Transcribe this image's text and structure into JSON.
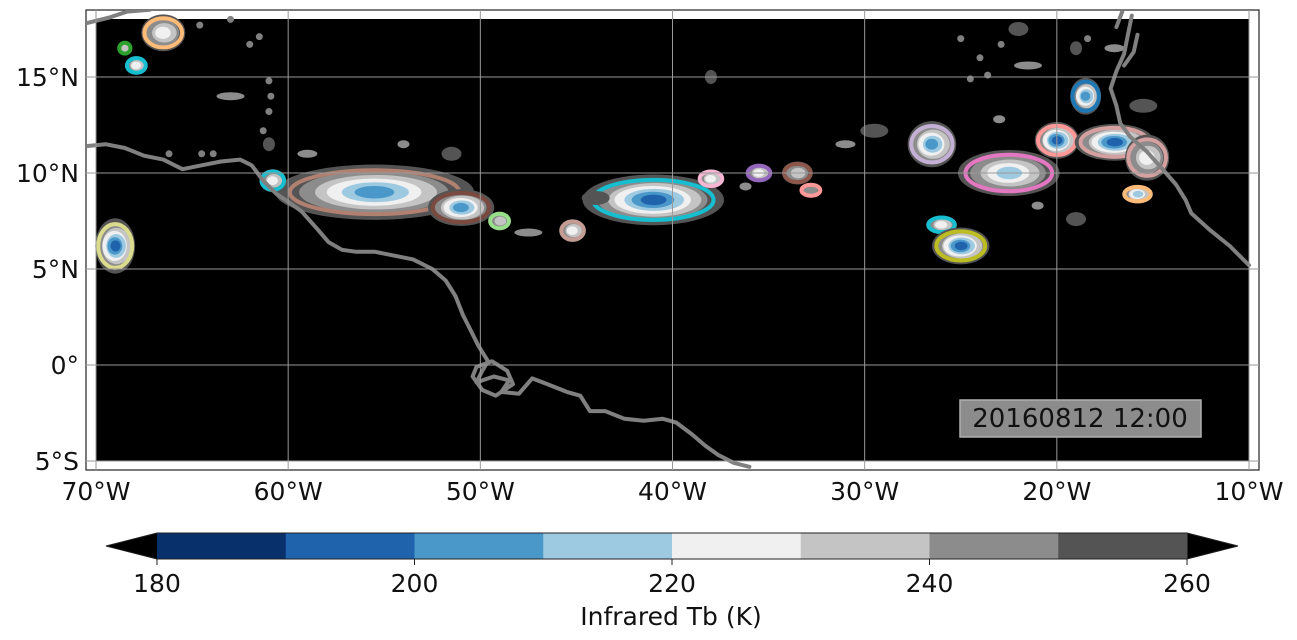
{
  "map": {
    "extent": {
      "lon_min": -70.5,
      "lon_max": -10.0,
      "lat_min": -5.5,
      "lat_max": 18.5
    },
    "gridlines": true,
    "lon_ticks": [
      {
        "value": -70,
        "label": "70°W"
      },
      {
        "value": -60,
        "label": "60°W"
      },
      {
        "value": -50,
        "label": "50°W"
      },
      {
        "value": -40,
        "label": "40°W"
      },
      {
        "value": -30,
        "label": "30°W"
      },
      {
        "value": -20,
        "label": "20°W"
      },
      {
        "value": -10,
        "label": "10°W"
      }
    ],
    "lat_ticks": [
      {
        "value": 15,
        "label": "15°N"
      },
      {
        "value": 10,
        "label": "10°N"
      },
      {
        "value": 5,
        "label": "5°N"
      },
      {
        "value": 0,
        "label": "0°"
      },
      {
        "value": -5,
        "label": "5°S"
      }
    ],
    "timestamp": "20160812 12:00",
    "colors": {
      "ocean": "#000000",
      "coast": "#808080",
      "grid": "#9a9a9a",
      "stamp_bg": "#8c8c8c"
    }
  },
  "colorbar": {
    "label": "Infrared Tb (K)",
    "ticks": [
      180,
      200,
      220,
      240,
      260
    ],
    "levels": [
      180,
      190,
      200,
      210,
      220,
      230,
      240,
      250,
      260
    ],
    "colors": [
      "#08306b",
      "#1f63ad",
      "#4a98c9",
      "#9ecae1",
      "#f0f0f0",
      "#c4c4c4",
      "#8c8c8c",
      "#545454"
    ],
    "extend": "both",
    "under_color": "#000000",
    "over_color": "#000000"
  },
  "cloud_systems": [
    {
      "lon": -55.5,
      "lat": 9.0,
      "rx": 4.5,
      "ry": 1.2,
      "outline": "#b08070",
      "min_tb": 210
    },
    {
      "lon": -51.0,
      "lat": 8.2,
      "rx": 1.5,
      "ry": 0.8,
      "outline": "#7a4a40",
      "min_tb": 210
    },
    {
      "lon": -41.0,
      "lat": 8.6,
      "rx": 3.2,
      "ry": 1.1,
      "outline": "#17becf",
      "min_tb": 200
    },
    {
      "lon": -69.0,
      "lat": 6.2,
      "rx": 0.9,
      "ry": 1.2,
      "outline": "#dbdb8d",
      "min_tb": 200
    },
    {
      "lon": -60.8,
      "lat": 9.6,
      "rx": 0.6,
      "ry": 0.5,
      "outline": "#17becf",
      "min_tb": 230
    },
    {
      "lon": -67.9,
      "lat": 15.6,
      "rx": 0.5,
      "ry": 0.4,
      "outline": "#17becf",
      "min_tb": 230
    },
    {
      "lon": -68.5,
      "lat": 16.5,
      "rx": 0.3,
      "ry": 0.3,
      "outline": "#2ca02c",
      "min_tb": 240
    },
    {
      "lon": -66.5,
      "lat": 17.3,
      "rx": 1.0,
      "ry": 0.8,
      "outline": "#ffbb78",
      "min_tb": 230
    },
    {
      "lon": -49.0,
      "lat": 7.5,
      "rx": 0.5,
      "ry": 0.4,
      "outline": "#98df8a",
      "min_tb": 240
    },
    {
      "lon": -45.2,
      "lat": 7.0,
      "rx": 0.6,
      "ry": 0.5,
      "outline": "#c49c94",
      "min_tb": 230
    },
    {
      "lon": -38.0,
      "lat": 9.7,
      "rx": 0.6,
      "ry": 0.4,
      "outline": "#f7b6d2",
      "min_tb": 230
    },
    {
      "lon": -35.5,
      "lat": 10.0,
      "rx": 0.6,
      "ry": 0.4,
      "outline": "#9467bd",
      "min_tb": 230
    },
    {
      "lon": -33.5,
      "lat": 10.0,
      "rx": 0.7,
      "ry": 0.5,
      "outline": "#8c564b",
      "min_tb": 240
    },
    {
      "lon": -32.8,
      "lat": 9.1,
      "rx": 0.5,
      "ry": 0.3,
      "outline": "#ff9896",
      "min_tb": 250
    },
    {
      "lon": -26.5,
      "lat": 11.5,
      "rx": 1.1,
      "ry": 1.0,
      "outline": "#c5b0d5",
      "min_tb": 210
    },
    {
      "lon": -22.5,
      "lat": 10.0,
      "rx": 2.3,
      "ry": 1.0,
      "outline": "#e377c2",
      "min_tb": 220
    },
    {
      "lon": -26.0,
      "lat": 7.3,
      "rx": 0.7,
      "ry": 0.4,
      "outline": "#17becf",
      "min_tb": 230
    },
    {
      "lon": -25.0,
      "lat": 6.2,
      "rx": 1.3,
      "ry": 0.8,
      "outline": "#bcbd22",
      "min_tb": 200
    },
    {
      "lon": -20.0,
      "lat": 11.7,
      "rx": 1.0,
      "ry": 0.8,
      "outline": "#ff9896",
      "min_tb": 200
    },
    {
      "lon": -17.0,
      "lat": 11.6,
      "rx": 1.8,
      "ry": 0.8,
      "outline": "#d4a0a0",
      "min_tb": 200
    },
    {
      "lon": -18.5,
      "lat": 14.0,
      "rx": 0.7,
      "ry": 0.8,
      "outline": "#1f77b4",
      "min_tb": 210
    },
    {
      "lon": -15.8,
      "lat": 8.9,
      "rx": 0.7,
      "ry": 0.4,
      "outline": "#ffbb78",
      "min_tb": 220
    },
    {
      "lon": -15.3,
      "lat": 10.8,
      "rx": 1.0,
      "ry": 1.0,
      "outline": "#d4a0a0",
      "min_tb": 230
    }
  ]
}
